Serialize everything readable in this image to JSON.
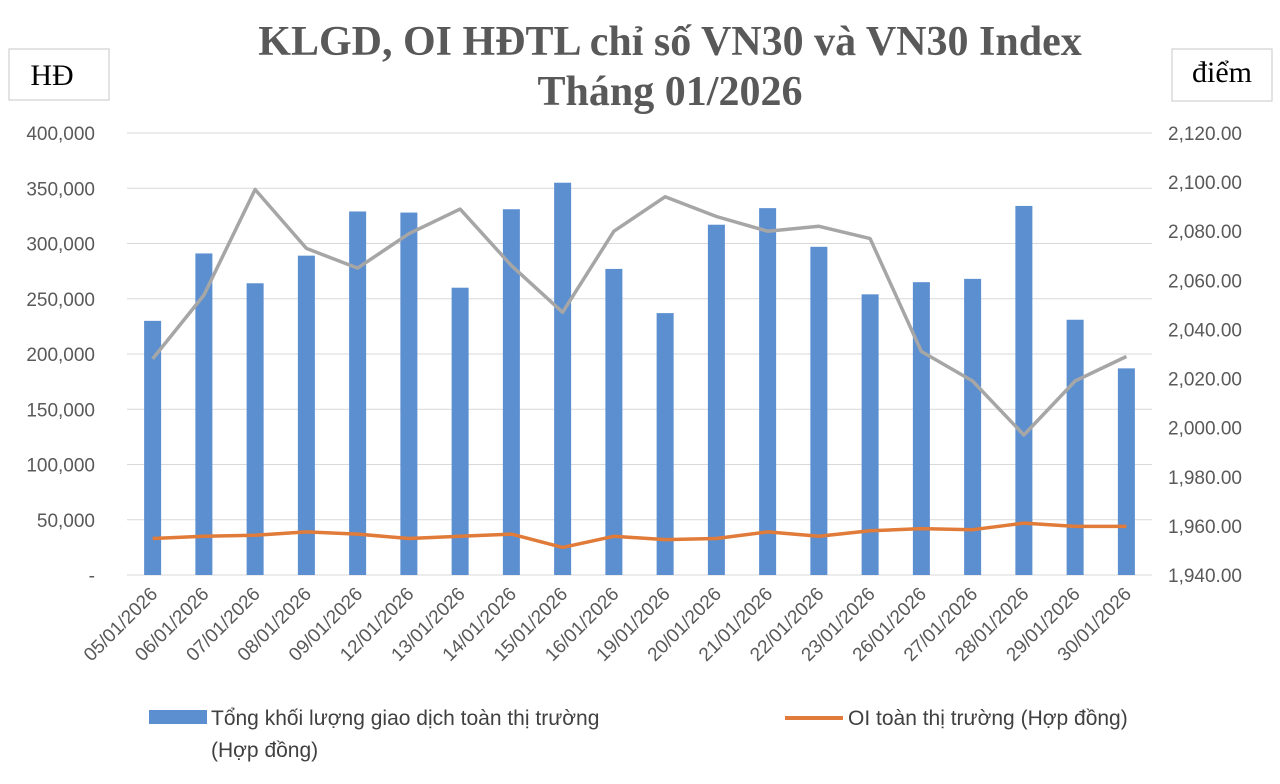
{
  "chart_data": {
    "type": "bar",
    "title_lines": [
      "KLGD, OI HĐTL chỉ số VN30 và VN30 Index",
      "Tháng 01/2026"
    ],
    "left_unit": "HĐ",
    "right_unit": "điểm",
    "categories": [
      "05/01/2026",
      "06/01/2026",
      "07/01/2026",
      "08/01/2026",
      "09/01/2026",
      "12/01/2026",
      "13/01/2026",
      "14/01/2026",
      "15/01/2026",
      "16/01/2026",
      "19/01/2026",
      "20/01/2026",
      "21/01/2026",
      "22/01/2026",
      "23/01/2026",
      "26/01/2026",
      "27/01/2026",
      "28/01/2026",
      "29/01/2026",
      "30/01/2026"
    ],
    "y_left": {
      "min": 0,
      "max": 400000,
      "step": 50000,
      "tick_labels": [
        "-",
        "50,000",
        "100,000",
        "150,000",
        "200,000",
        "250,000",
        "300,000",
        "350,000",
        "400,000"
      ]
    },
    "y_right": {
      "min": 1940,
      "max": 2120,
      "step": 20,
      "tick_labels": [
        "1,940.00",
        "1,960.00",
        "1,980.00",
        "2,000.00",
        "2,020.00",
        "2,040.00",
        "2,060.00",
        "2,080.00",
        "2,100.00",
        "2,120.00"
      ]
    },
    "grid": true,
    "legend_position": "bottom",
    "series": [
      {
        "name": "Tổng khối lượng giao dịch toàn thị trường (Hợp đồng)",
        "legend_lines": [
          "Tổng khối lượng giao dịch toàn thị trường",
          "(Hợp đồng)"
        ],
        "type": "bar",
        "axis": "left",
        "color": "#5b8fd0",
        "values": [
          230000,
          291000,
          264000,
          289000,
          329000,
          328000,
          260000,
          331000,
          355000,
          277000,
          237000,
          317000,
          332000,
          297000,
          254000,
          265000,
          268000,
          334000,
          231000,
          187000
        ]
      },
      {
        "name": "OI toàn thị trường (Hợp đồng)",
        "legend_lines": [
          "OI toàn thị trường (Hợp đồng)"
        ],
        "type": "line",
        "axis": "left",
        "color": "#e07b39",
        "values": [
          33000,
          35000,
          36000,
          39000,
          37000,
          33000,
          35000,
          37000,
          25000,
          35000,
          32000,
          33000,
          39000,
          35000,
          40000,
          42000,
          41000,
          47000,
          44000,
          44000
        ]
      },
      {
        "name": "VN30 Index",
        "type": "line",
        "axis": "right",
        "color": "#a6a6a6",
        "values": [
          2028,
          2054,
          2097,
          2073,
          2065,
          2079,
          2089,
          2066,
          2047,
          2080,
          2094,
          2086,
          2080,
          2082,
          2077,
          2031,
          2019,
          1997,
          2019,
          2029
        ]
      }
    ]
  }
}
